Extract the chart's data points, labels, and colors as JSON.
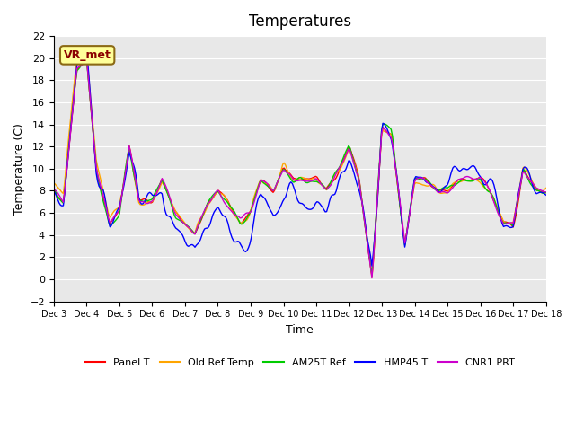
{
  "title": "Temperatures",
  "xlabel": "Time",
  "ylabel": "Temperature (C)",
  "ylim": [
    -2,
    22
  ],
  "yticks": [
    -2,
    0,
    2,
    4,
    6,
    8,
    10,
    12,
    14,
    16,
    18,
    20,
    22
  ],
  "xtick_labels": [
    "Dec 3",
    "Dec 4",
    "Dec 5",
    "Dec 6",
    "Dec 7",
    "Dec 8",
    "Dec 9",
    "Dec 10",
    "Dec 11",
    "Dec 12",
    "Dec 13",
    "Dec 14",
    "Dec 15",
    "Dec 16",
    "Dec 17",
    "Dec 18"
  ],
  "station_label": "VR_met",
  "series_colors": {
    "Panel T": "#ff0000",
    "Old Ref Temp": "#ffa500",
    "AM25T Ref": "#00cc00",
    "HMP45 T": "#0000ff",
    "CNR1 PRT": "#cc00cc"
  },
  "background_color": "#e8e8e8",
  "fig_background": "#ffffff",
  "linewidth": 1.0
}
